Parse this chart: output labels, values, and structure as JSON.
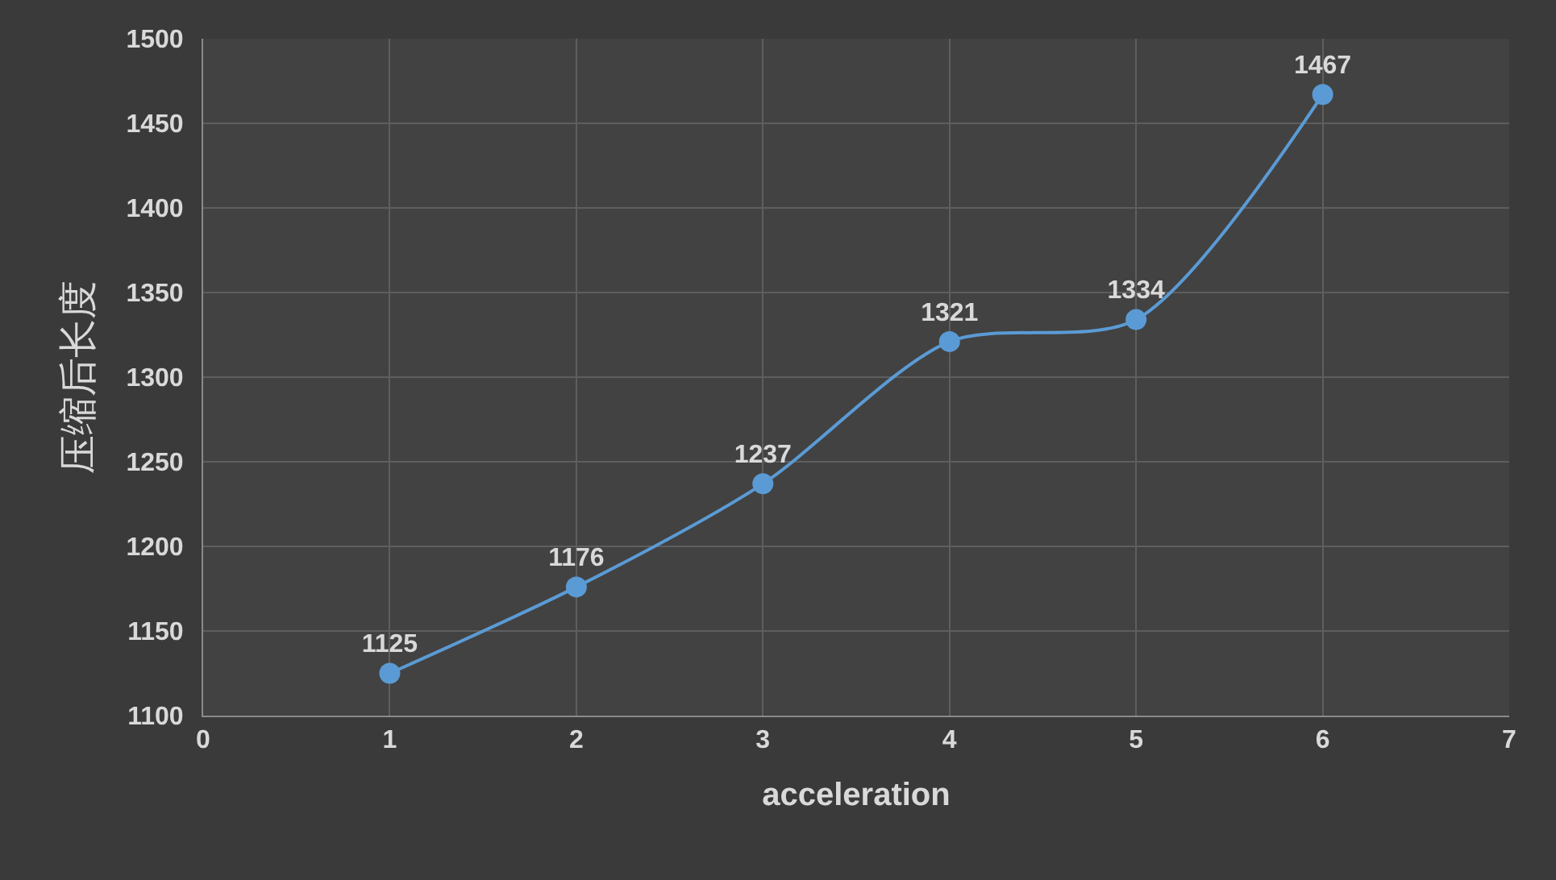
{
  "chart_data": {
    "type": "line",
    "xlabel": "acceleration",
    "ylabel": "压缩后长度",
    "x": [
      1,
      2,
      3,
      4,
      5,
      6
    ],
    "values": [
      1125,
      1176,
      1237,
      1321,
      1334,
      1467
    ],
    "color": "#5b9bd5",
    "xlim": [
      0,
      7
    ],
    "xticks": [
      0,
      1,
      2,
      3,
      4,
      5,
      6,
      7
    ],
    "ylim": [
      1100,
      1500
    ],
    "yticks": [
      1100,
      1150,
      1200,
      1250,
      1300,
      1350,
      1400,
      1450,
      1500
    ],
    "grid": true,
    "marker": "circle",
    "line_style": "solid",
    "data_labels": true
  }
}
